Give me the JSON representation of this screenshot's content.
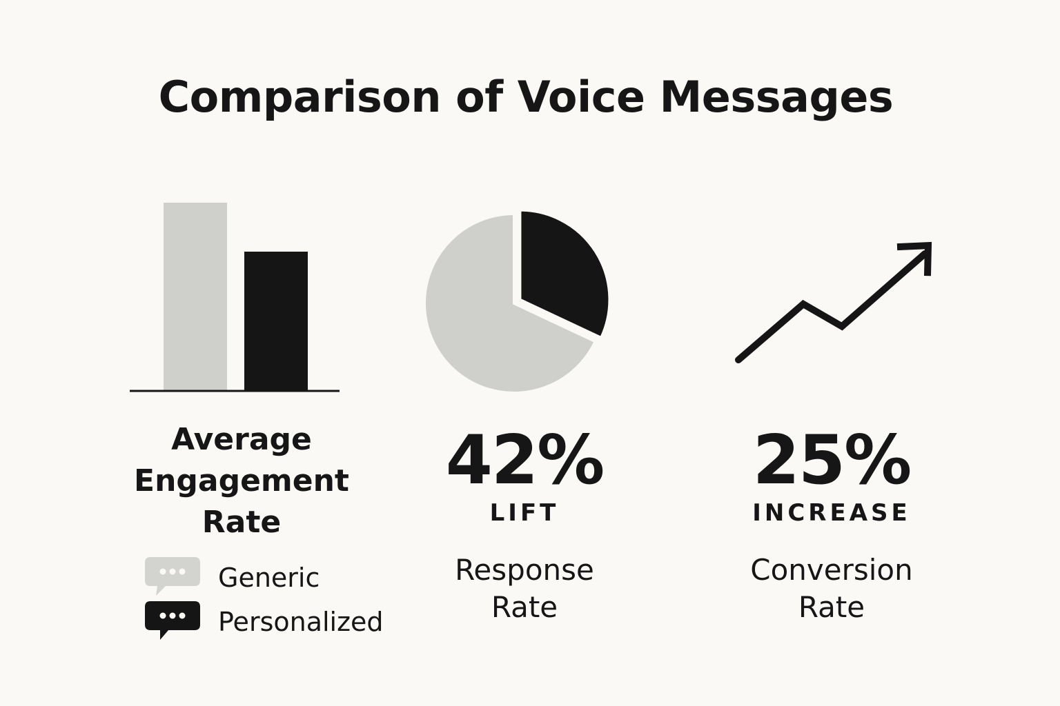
{
  "title": "Comparison of Voice Messages",
  "colors": {
    "generic": "#cfcfcb",
    "personalized": "#151515",
    "axis": "#151515",
    "background": "#faf9f6"
  },
  "chart_data": [
    {
      "type": "bar",
      "title": "Average Engagement Rate",
      "categories": [
        "Generic",
        "Personalized"
      ],
      "values": [
        100,
        74
      ],
      "ylim": [
        0,
        100
      ],
      "grid": false
    },
    {
      "type": "pie",
      "title": "Response Rate",
      "slices": [
        {
          "name": "Personalized",
          "value": 32
        },
        {
          "name": "Generic",
          "value": 68
        }
      ],
      "stat": "42%",
      "stat_caption": "LIFT"
    },
    {
      "type": "line",
      "title": "Conversion Rate",
      "x": [
        0,
        1,
        2,
        3
      ],
      "y": [
        0,
        50,
        30,
        95
      ],
      "ylim": [
        0,
        100
      ],
      "stat": "25%",
      "stat_caption": "INCREASE"
    }
  ],
  "legend": {
    "items": [
      {
        "label": "Generic",
        "icon": "chat-bubble-light-icon"
      },
      {
        "label": "Personalized",
        "icon": "chat-bubble-dark-icon"
      }
    ]
  },
  "bar_label": {
    "line1": "Average",
    "line2": "Engagement",
    "line3": "Rate"
  },
  "pie_label": {
    "number": "42%",
    "caption": "LIFT",
    "line1": "Response",
    "line2": "Rate"
  },
  "line_label": {
    "number": "25%",
    "caption": "INCREASE",
    "line1": "Conversion",
    "line2": "Rate"
  }
}
